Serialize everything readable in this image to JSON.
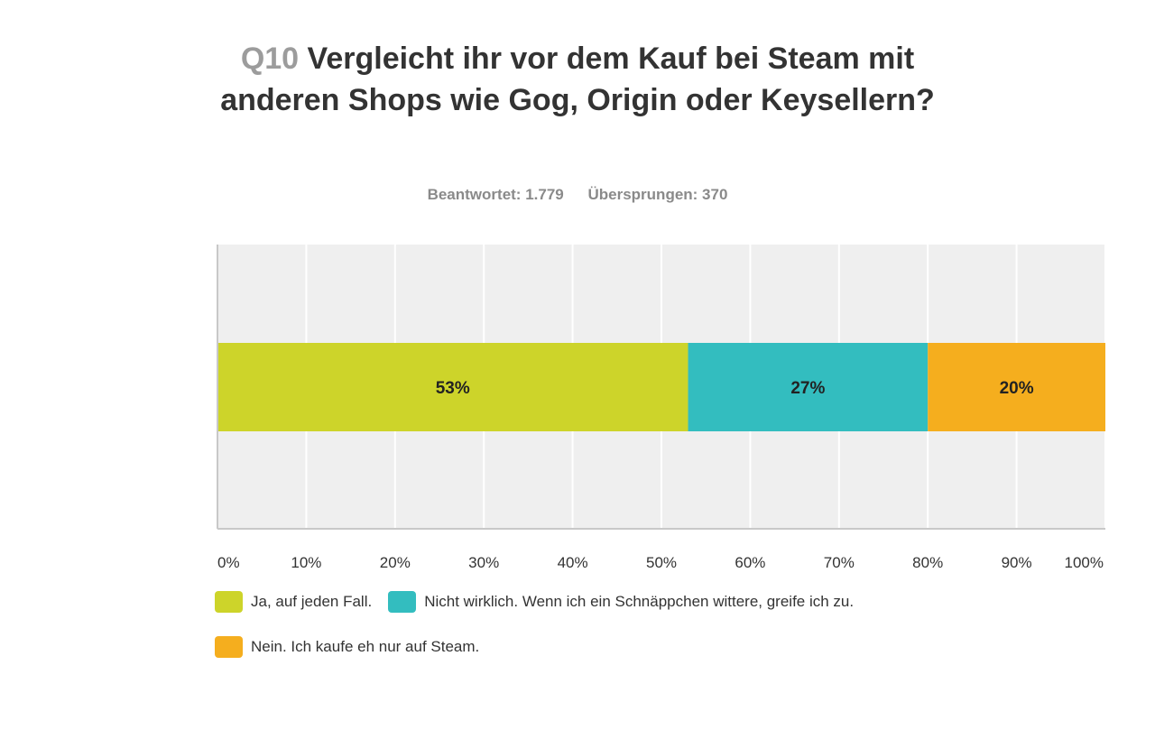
{
  "question": {
    "number": "Q10",
    "text": "Vergleicht ihr vor dem Kauf bei Steam mit anderen Shops wie Gog, Origin oder Keysellern?"
  },
  "stats": {
    "answered": "Beantwortet: 1.779",
    "skipped": "Übersprungen: 370"
  },
  "chart_data": {
    "type": "bar",
    "stacked": true,
    "orientation": "horizontal",
    "xlim": [
      0,
      100
    ],
    "x_ticks": [
      "0%",
      "10%",
      "20%",
      "30%",
      "40%",
      "50%",
      "60%",
      "70%",
      "80%",
      "90%",
      "100%"
    ],
    "grid": true,
    "legend_position": "bottom-left",
    "series": [
      {
        "name": "Ja, auf jeden Fall.",
        "value": 53,
        "label": "53%",
        "color": "#cdd42a"
      },
      {
        "name": "Nicht wirklich. Wenn ich ein Schnäppchen wittere, greife ich zu.",
        "value": 27,
        "label": "27%",
        "color": "#33bdbf"
      },
      {
        "name": "Nein. Ich kaufe eh nur auf Steam.",
        "value": 20,
        "label": "20%",
        "color": "#f5ae1e"
      }
    ]
  }
}
